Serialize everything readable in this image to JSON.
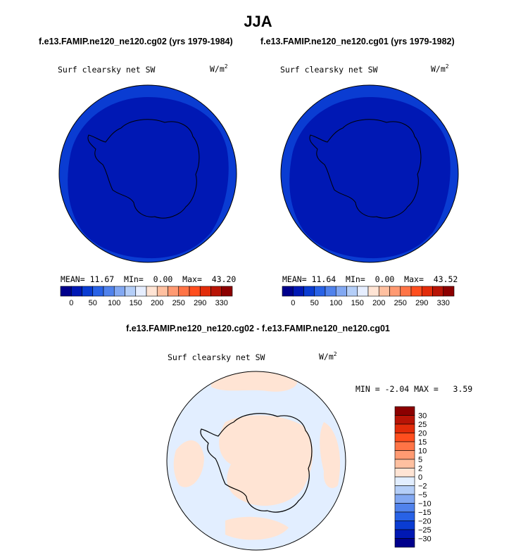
{
  "page": {
    "title": "JJA",
    "case_titles": [
      "f.e13.FAMIP.ne120_ne120.cg02 (yrs 1979-1984)",
      "f.e13.FAMIP.ne120_ne120.cg01 (yrs 1979-1982)"
    ],
    "diff_title": "f.e13.FAMIP.ne120_ne120.cg02 - f.e13.FAMIP.ne120_ne120.cg01"
  },
  "chart_data": [
    {
      "type": "heatmap",
      "panel": "case-1",
      "variable": "Surf clearsky net SW",
      "units": "W/m",
      "units_exponent": "2",
      "stats": {
        "mean_label": "MEAN=",
        "mean": "11.67",
        "min_label": "MIn=",
        "min": "0.00",
        "max_label": "Max=",
        "max": "43.20"
      },
      "colorbar_ticks": [
        "0",
        "50",
        "100",
        "150",
        "200",
        "250",
        "290",
        "330"
      ]
    },
    {
      "type": "heatmap",
      "panel": "case-2",
      "variable": "Surf clearsky net SW",
      "units": "W/m",
      "units_exponent": "2",
      "stats": {
        "mean_label": "MEAN=",
        "mean": "11.64",
        "min_label": "MIn=",
        "min": "0.00",
        "max_label": "Max=",
        "max": "43.52"
      },
      "colorbar_ticks": [
        "0",
        "50",
        "100",
        "150",
        "200",
        "250",
        "290",
        "330"
      ]
    },
    {
      "type": "heatmap",
      "panel": "difference",
      "variable": "Surf clearsky net SW",
      "units": "W/m",
      "units_exponent": "2",
      "stats": {
        "min_label": "MIN =",
        "min": "-2.04",
        "max_label": "MAX =",
        "max": "3.59"
      },
      "colorbar_ticks": [
        "30",
        "25",
        "20",
        "15",
        "10",
        "5",
        "2",
        "0",
        "−2",
        "−5",
        "−10",
        "−15",
        "−20",
        "−25",
        "−30"
      ]
    }
  ],
  "colors": {
    "abs_scale": [
      "#00008c",
      "#0018b4",
      "#0a3cd2",
      "#2862e6",
      "#5082ec",
      "#82a8f2",
      "#b4cef8",
      "#e6eeff",
      "#ffe4d4",
      "#ffc0a0",
      "#ff9a72",
      "#ff7446",
      "#ff4e1e",
      "#e22c0a",
      "#b81406",
      "#8c0000"
    ],
    "diff_scale_top_to_bottom": [
      "#8c0000",
      "#b81406",
      "#e22c0a",
      "#ff4e1e",
      "#ff7446",
      "#ff9a72",
      "#ffc0a0",
      "#ffe4d4",
      "#e2eeff",
      "#b4cef8",
      "#82a8f2",
      "#5082ec",
      "#2862e6",
      "#0a3cd2",
      "#0018b4",
      "#00008c"
    ],
    "abs_outer_ring": "#0a3cd2",
    "abs_inner": "#0018b4",
    "diff_positive": "#ffe4d4",
    "diff_negative": "#e2eeff"
  }
}
